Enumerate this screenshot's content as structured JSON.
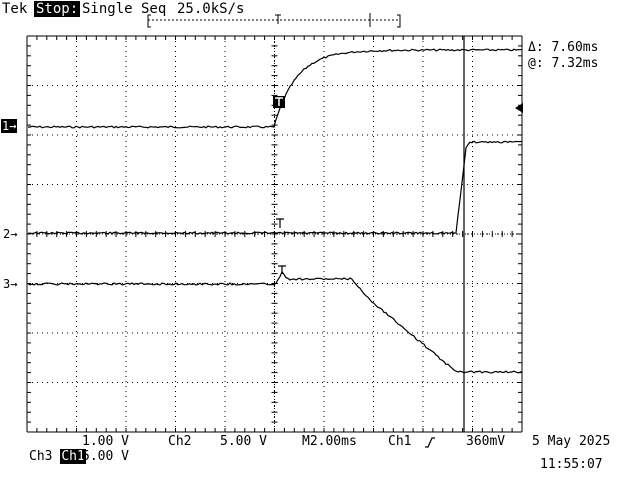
{
  "status": {
    "brand": "Tek",
    "acquisition_state": "Stop:",
    "acquisition_mode": "Single Seq",
    "sample_rate": "25.0kS/s"
  },
  "cursor": {
    "delta_label": "Δ: 7.60ms",
    "at_label": "@: 7.32ms"
  },
  "channels": {
    "ch1": {
      "marker": "1→",
      "name": "Ch1",
      "scale": "1.00 V"
    },
    "ch2": {
      "marker": "2→",
      "name": "Ch2",
      "scale": "5.00 V"
    },
    "ch3": {
      "marker": "3→",
      "name": "Ch3",
      "scale": "5.00 V"
    }
  },
  "timebase": {
    "scale": "M2.00ms",
    "trigger_source": "Ch1",
    "trigger_slope_icon": "rising-edge-icon",
    "trigger_level": "360mV"
  },
  "timestamp": {
    "date": "5 May 2025",
    "time": "11:55:07"
  },
  "colors": {
    "background": "#ffffff",
    "trace": "#000000",
    "grid": "#000000"
  }
}
